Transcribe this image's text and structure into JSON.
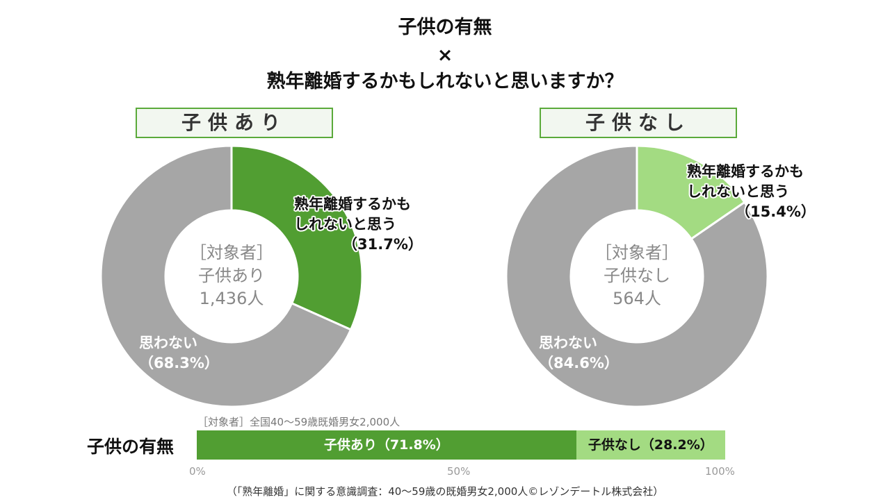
{
  "title": {
    "line1": "子供の有無",
    "line2": "×",
    "line3": "熟年離婚するかもしれないと思いますか？"
  },
  "colors": {
    "yes": "#519e32",
    "yes_light": "#a3db82",
    "no": "#a6a6a6",
    "frame": "#5aaa3a"
  },
  "chart_data": [
    {
      "type": "pie",
      "donut": true,
      "title": "子供あり",
      "center_text": [
        "［対象者］",
        "子供あり",
        "1,436人"
      ],
      "categories": [
        "熟年離婚するかもしれないと思う",
        "思わない"
      ],
      "values": [
        31.7,
        68.3
      ],
      "labels": [
        [
          "熟年離婚するかも",
          "しれないと思う",
          "（31.7%）"
        ],
        [
          "思わない",
          "（68.3%）"
        ]
      ],
      "colors": [
        "#519e32",
        "#a6a6a6"
      ]
    },
    {
      "type": "pie",
      "donut": true,
      "title": "子供なし",
      "center_text": [
        "［対象者］",
        "子供なし",
        "564人"
      ],
      "categories": [
        "熟年離婚するかもしれないと思う",
        "思わない"
      ],
      "values": [
        15.4,
        84.6
      ],
      "labels": [
        [
          "熟年離婚するかも",
          "しれないと思う",
          "（15.4%）"
        ],
        [
          "思わない",
          "（84.6%）"
        ]
      ],
      "colors": [
        "#a3db82",
        "#a6a6a6"
      ]
    },
    {
      "type": "bar",
      "orientation": "horizontal-stacked",
      "title": "子供の有無",
      "note": "［対象者］全国40～59歳既婚男女2,000人",
      "categories": [
        "子供あり",
        "子供なし"
      ],
      "values": [
        71.8,
        28.2
      ],
      "labels": [
        "子供あり（71.8%）",
        "子供なし（28.2%）"
      ],
      "colors": [
        "#519e32",
        "#a3db82"
      ],
      "xlim": [
        0,
        100
      ],
      "ticks": [
        "0%",
        "50%",
        "100%"
      ]
    }
  ],
  "footer": "（「熟年離婚」に関する意識調査：40～59歳の既婚男女2,000人©レゾンデートル株式会社）"
}
